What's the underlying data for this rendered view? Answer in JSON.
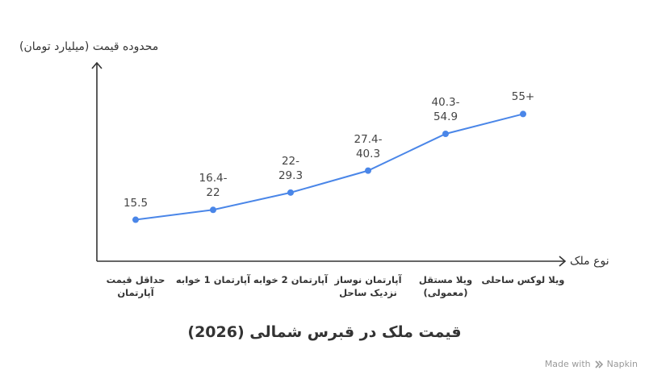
{
  "chart_data": {
    "type": "line",
    "title": "قیمت ملک در قبرس شمالی (2026)",
    "xlabel": "نوع ملک",
    "ylabel": "محدوده قیمت (میلیارد تومان)",
    "categories": [
      [
        "حداقل قیمت",
        "آپارتمان"
      ],
      [
        "آپارتمان 1 خوابه"
      ],
      [
        "آپارتمان 2 خوابه"
      ],
      [
        "آپارتمان نوساز",
        "نزدیک ساحل"
      ],
      [
        "ویلا مستقل",
        "(معمولی)"
      ],
      [
        "ویلا لوکس ساحلی"
      ]
    ],
    "values": [
      15.5,
      19.2,
      25.65,
      33.85,
      47.6,
      55
    ],
    "value_labels": [
      [
        "15.5"
      ],
      [
        "16.4-",
        "22"
      ],
      [
        "22-",
        "29.3"
      ],
      [
        "27.4-",
        "40.3"
      ],
      [
        "40.3-",
        "54.9"
      ],
      [
        "55+"
      ]
    ],
    "ylim": [
      0,
      72
    ],
    "grid": false,
    "line_color": "#4a86e8"
  },
  "footer": {
    "made_with": "Made with",
    "brand": "Napkin"
  },
  "icons": {
    "brand_logo": "napkin-logo-icon"
  }
}
